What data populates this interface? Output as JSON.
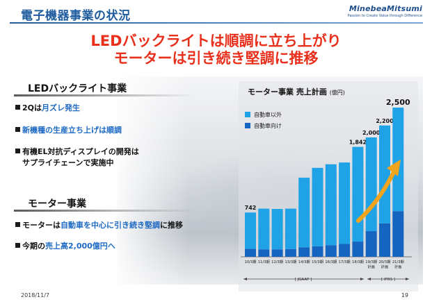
{
  "header": {
    "title": "電子機器事業の状況",
    "logo_name": "MinebeaMitsumi",
    "logo_tagline": "Passion to Create Value through Difference"
  },
  "headline": {
    "line1": "LEDバックライトは順調に立ち上がり",
    "line2": "モーターは引き続き堅調に推移"
  },
  "led_section": {
    "title": "LEDバックライト事業",
    "bullets": [
      {
        "pre": "2Qは",
        "em": "月ズレ発生",
        "post": ""
      },
      {
        "pre": "",
        "em": "新機種の生産立ち上げは順調",
        "post": ""
      },
      {
        "line1": "有機EL対抗ディスプレイの開発は",
        "line2": "サプライチェーンで実施中"
      }
    ]
  },
  "motor_section": {
    "title": "モーター事業",
    "bullets": [
      {
        "pre": "モーターは",
        "em": "自動車を中心に引き続き堅調",
        "post": "に推移"
      },
      {
        "pre": "今期の",
        "em": "売上高2,000億円へ",
        "post": ""
      }
    ]
  },
  "colors": {
    "accent_red": "#e8301c",
    "brand_blue": "#1f5c9e",
    "bar_other": "#1fa3e6",
    "bar_auto": "#1565c0",
    "arrow": "#f2a41c"
  },
  "footer": {
    "date": "2018/11/7",
    "page": "19"
  },
  "chart_data": {
    "type": "bar",
    "title": "モーター事業 売上計画",
    "unit": "(億円)",
    "categories": [
      "10/3期",
      "11/3期",
      "12/3期",
      "13/3期",
      "14/3期",
      "15/3期",
      "16/3期",
      "17/3期",
      "18/3期",
      "19/3期 計画",
      "20/3期 計画",
      "21/3期 計画"
    ],
    "category_labels": [
      {
        "top": "10/3期",
        "bottom": ""
      },
      {
        "top": "11/3期",
        "bottom": ""
      },
      {
        "top": "12/3期",
        "bottom": ""
      },
      {
        "top": "13/3期",
        "bottom": ""
      },
      {
        "top": "14/3期",
        "bottom": ""
      },
      {
        "top": "15/3期",
        "bottom": ""
      },
      {
        "top": "16/3期",
        "bottom": ""
      },
      {
        "top": "17/3期",
        "bottom": ""
      },
      {
        "top": "18/3期",
        "bottom": ""
      },
      {
        "top": "19/3期",
        "bottom": "計画"
      },
      {
        "top": "20/3期",
        "bottom": "計画"
      },
      {
        "top": "21/3期",
        "bottom": "計画"
      }
    ],
    "series": [
      {
        "name": "自動車向け",
        "values": [
          135,
          125,
          125,
          130,
          160,
          175,
          195,
          215,
          255,
          430,
          560,
          765
        ]
      },
      {
        "name": "自動車以外",
        "values": [
          607,
          682,
          677,
          677,
          1165,
          1315,
          1355,
          1365,
          1587,
          1570,
          1640,
          1735
        ]
      }
    ],
    "data_labels": {
      "0": "742",
      "8": "1,842",
      "9": "2,000",
      "10": "2,200",
      "11": "2,500"
    },
    "ylim": [
      0,
      2500
    ],
    "legend_position": "top-left",
    "era_labels": [
      {
        "label": "[ JGAAP ]"
      },
      {
        "label": "[ IFRS ]"
      }
    ]
  }
}
